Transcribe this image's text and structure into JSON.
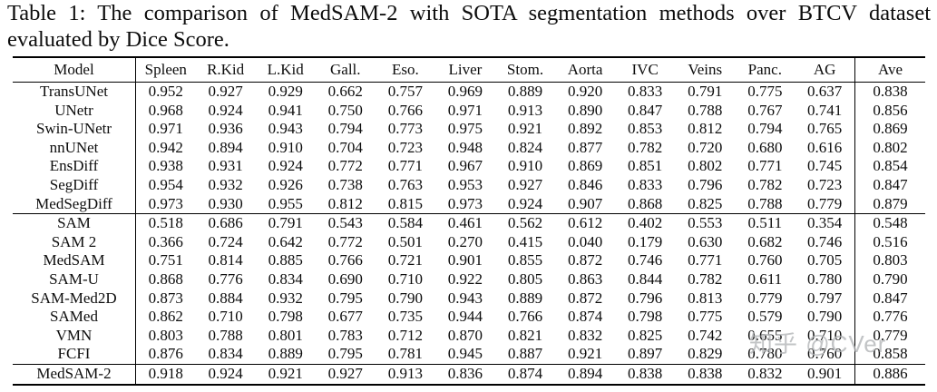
{
  "caption": "Table 1: The comparison of MedSAM-2 with SOTA segmentation methods over BTCV dataset evaluated by Dice Score.",
  "watermark": "知乎 @CVer",
  "table": {
    "columns": [
      "Model",
      "Spleen",
      "R.Kid",
      "L.Kid",
      "Gall.",
      "Eso.",
      "Liver",
      "Stom.",
      "Aorta",
      "IVC",
      "Veins",
      "Panc.",
      "AG",
      "Ave"
    ],
    "groups": [
      {
        "name": "fully-supervised-methods",
        "rows": [
          {
            "model": "TransUNet",
            "values": [
              "0.952",
              "0.927",
              "0.929",
              "0.662",
              "0.757",
              "0.969",
              "0.889",
              "0.920",
              "0.833",
              "0.791",
              "0.775",
              "0.637",
              "0.838"
            ]
          },
          {
            "model": "UNetr",
            "values": [
              "0.968",
              "0.924",
              "0.941",
              "0.750",
              "0.766",
              "0.971",
              "0.913",
              "0.890",
              "0.847",
              "0.788",
              "0.767",
              "0.741",
              "0.856"
            ]
          },
          {
            "model": "Swin-UNetr",
            "values": [
              "0.971",
              "0.936",
              "0.943",
              "0.794",
              "0.773",
              "0.975",
              "0.921",
              "0.892",
              "0.853",
              "0.812",
              "0.794",
              "0.765",
              "0.869"
            ]
          },
          {
            "model": "nnUNet",
            "values": [
              "0.942",
              "0.894",
              "0.910",
              "0.704",
              "0.723",
              "0.948",
              "0.824",
              "0.877",
              "0.782",
              "0.720",
              "0.680",
              "0.616",
              "0.802"
            ]
          },
          {
            "model": "EnsDiff",
            "values": [
              "0.938",
              "0.931",
              "0.924",
              "0.772",
              "0.771",
              "0.967",
              "0.910",
              "0.869",
              "0.851",
              "0.802",
              "0.771",
              "0.745",
              "0.854"
            ]
          },
          {
            "model": "SegDiff",
            "values": [
              "0.954",
              "0.932",
              "0.926",
              "0.738",
              "0.763",
              "0.953",
              "0.927",
              "0.846",
              "0.833",
              "0.796",
              "0.782",
              "0.723",
              "0.847"
            ]
          },
          {
            "model": "MedSegDiff",
            "values": [
              "0.973",
              "0.930",
              "0.955",
              "0.812",
              "0.815",
              "0.973",
              "0.924",
              "0.907",
              "0.868",
              "0.825",
              "0.788",
              "0.779",
              "0.879"
            ]
          }
        ]
      },
      {
        "name": "sam-based-methods",
        "rows": [
          {
            "model": "SAM",
            "values": [
              "0.518",
              "0.686",
              "0.791",
              "0.543",
              "0.584",
              "0.461",
              "0.562",
              "0.612",
              "0.402",
              "0.553",
              "0.511",
              "0.354",
              "0.548"
            ]
          },
          {
            "model": "SAM 2",
            "values": [
              "0.366",
              "0.724",
              "0.642",
              "0.772",
              "0.501",
              "0.270",
              "0.415",
              "0.040",
              "0.179",
              "0.630",
              "0.682",
              "0.746",
              "0.516"
            ]
          },
          {
            "model": "MedSAM",
            "values": [
              "0.751",
              "0.814",
              "0.885",
              "0.766",
              "0.721",
              "0.901",
              "0.855",
              "0.872",
              "0.746",
              "0.771",
              "0.760",
              "0.705",
              "0.803"
            ]
          },
          {
            "model": "SAM-U",
            "values": [
              "0.868",
              "0.776",
              "0.834",
              "0.690",
              "0.710",
              "0.922",
              "0.805",
              "0.863",
              "0.844",
              "0.782",
              "0.611",
              "0.780",
              "0.790"
            ]
          },
          {
            "model": "SAM-Med2D",
            "values": [
              "0.873",
              "0.884",
              "0.932",
              "0.795",
              "0.790",
              "0.943",
              "0.889",
              "0.872",
              "0.796",
              "0.813",
              "0.779",
              "0.797",
              "0.847"
            ]
          },
          {
            "model": "SAMed",
            "values": [
              "0.862",
              "0.710",
              "0.798",
              "0.677",
              "0.735",
              "0.944",
              "0.766",
              "0.874",
              "0.798",
              "0.775",
              "0.579",
              "0.790",
              "0.776"
            ]
          },
          {
            "model": "VMN",
            "values": [
              "0.803",
              "0.788",
              "0.801",
              "0.783",
              "0.712",
              "0.870",
              "0.821",
              "0.832",
              "0.825",
              "0.742",
              "0.655",
              "0.710",
              "0.779"
            ]
          },
          {
            "model": "FCFI",
            "values": [
              "0.876",
              "0.834",
              "0.889",
              "0.795",
              "0.781",
              "0.945",
              "0.887",
              "0.921",
              "0.897",
              "0.829",
              "0.780",
              "0.760",
              "0.858"
            ]
          }
        ]
      },
      {
        "name": "proposed-method",
        "rows": [
          {
            "model": "MedSAM-2",
            "values": [
              "0.918",
              "0.924",
              "0.921",
              "0.927",
              "0.913",
              "0.836",
              "0.874",
              "0.894",
              "0.838",
              "0.838",
              "0.832",
              "0.901",
              "0.886"
            ]
          }
        ]
      }
    ]
  }
}
